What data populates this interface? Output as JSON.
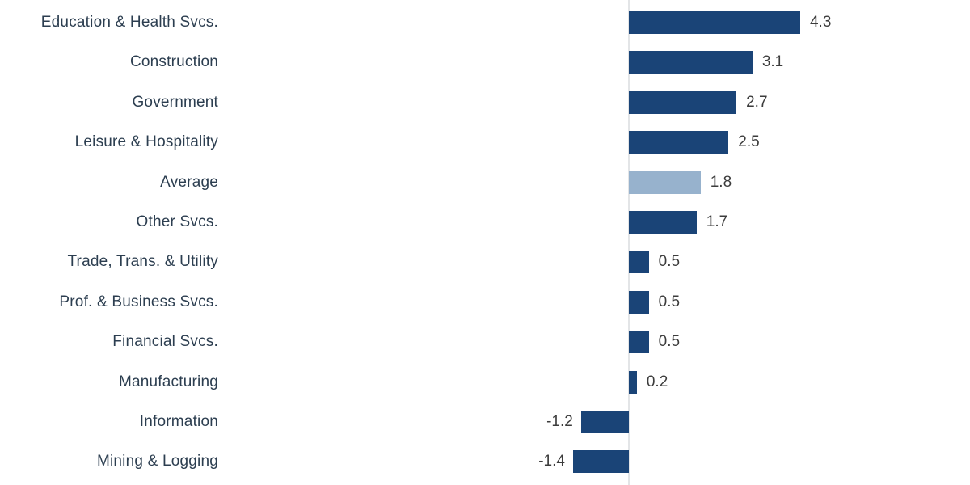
{
  "chart_data": {
    "type": "bar",
    "orientation": "horizontal",
    "title": "",
    "xlabel": "",
    "ylabel": "",
    "grid": false,
    "legend": false,
    "xlim": [
      -1.4,
      4.3
    ],
    "categories": [
      "Education & Health Svcs.",
      "Construction",
      "Government",
      "Leisure & Hospitality",
      "Average",
      "Other Svcs.",
      "Trade, Trans. & Utility",
      "Prof. & Business Svcs.",
      "Financial Svcs.",
      "Manufacturing",
      "Information",
      "Mining & Logging"
    ],
    "values": [
      4.3,
      3.1,
      2.7,
      2.5,
      1.8,
      1.7,
      0.5,
      0.5,
      0.5,
      0.2,
      -1.2,
      -1.4
    ],
    "value_labels": [
      "4.3",
      "3.1",
      "2.7",
      "2.5",
      "1.8",
      "1.7",
      "0.5",
      "0.5",
      "0.5",
      "0.2",
      "-1.2",
      "-1.4"
    ],
    "highlight_category": "Average",
    "colors": {
      "bar": "#1A4477",
      "highlight_bar": "#97B2CD",
      "zero_line": "#E3E5E7",
      "category_text": "#2C3E50",
      "value_text": "#3C3C3C",
      "background": "#FFFFFF"
    }
  }
}
